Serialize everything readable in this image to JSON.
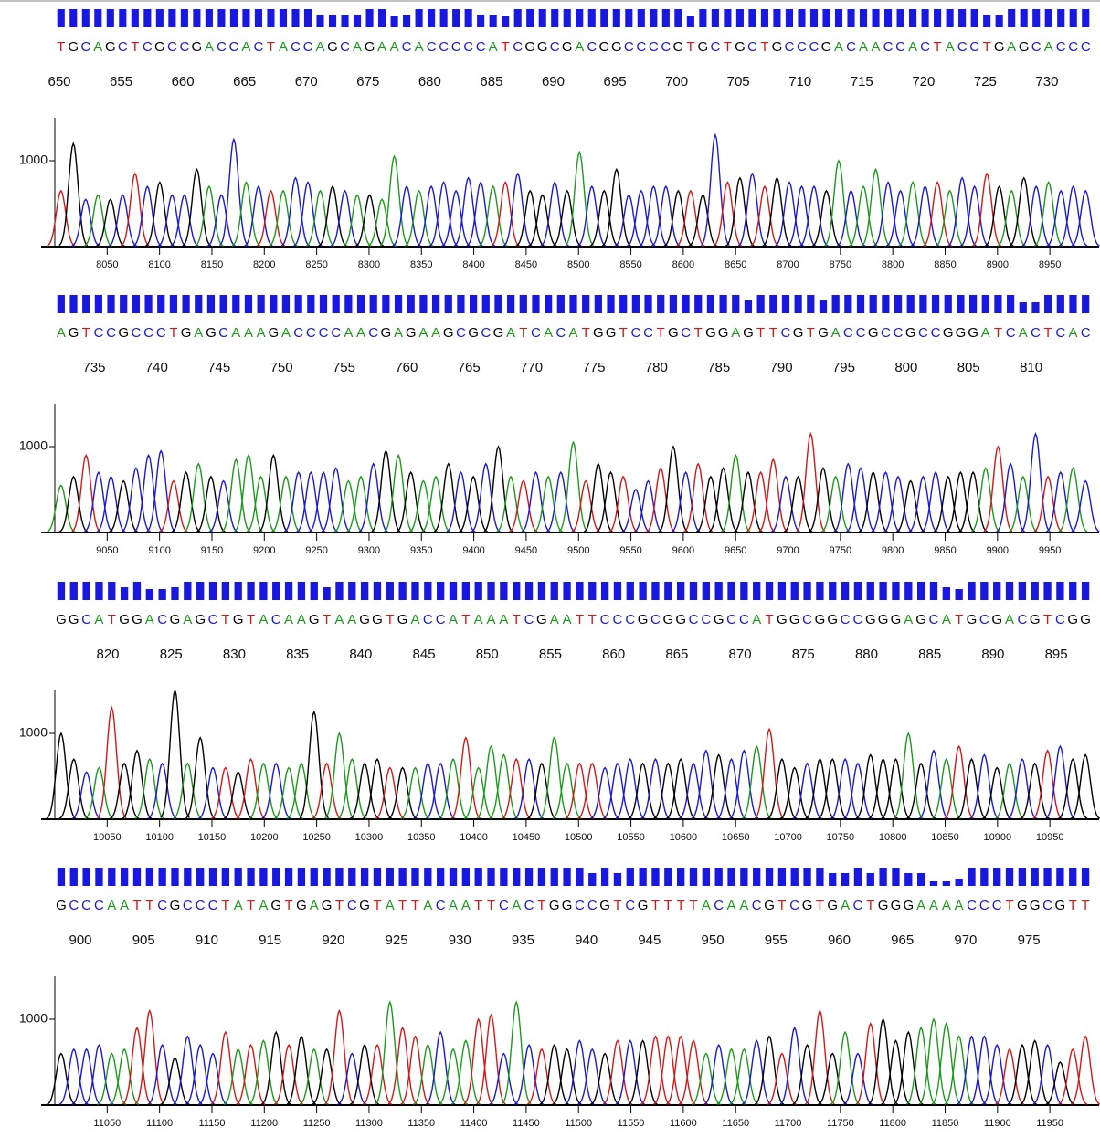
{
  "chart_data": [
    {
      "type": "chromatogram",
      "sequence": "TGCAGCTCGCCGACCACTACCAGCAGAACACCCCCATCGGCGACGGCCCCGTGCTGCTGCCCGACAACCACTACCTGAGCACCC",
      "positions": [
        650,
        655,
        660,
        665,
        670,
        675,
        680,
        685,
        690,
        695,
        700,
        705,
        710,
        715,
        720,
        725,
        730
      ],
      "peaks": [
        650,
        1200,
        550,
        600,
        550,
        600,
        850,
        700,
        750,
        600,
        600,
        900,
        700,
        600,
        1250,
        750,
        700,
        650,
        650,
        800,
        750,
        650,
        700,
        650,
        600,
        600,
        550,
        1050,
        700,
        650,
        700,
        750,
        650,
        800,
        750,
        700,
        750,
        850,
        650,
        600,
        750,
        650,
        1100,
        700,
        650,
        900,
        600,
        650,
        700,
        700,
        650,
        650,
        600,
        1300,
        750,
        800,
        850,
        700,
        800,
        750,
        700,
        700,
        650,
        1000,
        650,
        700,
        900,
        750,
        650,
        750,
        700,
        750,
        650,
        800,
        700,
        850,
        700,
        650,
        800,
        700,
        750,
        650,
        700,
        650
      ],
      "quality": [
        20,
        20,
        20,
        20,
        20,
        20,
        20,
        20,
        20,
        20,
        20,
        20,
        20,
        20,
        20,
        20,
        20,
        20,
        20,
        20,
        20,
        14,
        14,
        14,
        14,
        20,
        20,
        12,
        14,
        20,
        20,
        20,
        20,
        20,
        14,
        14,
        12,
        20,
        20,
        20,
        20,
        20,
        20,
        20,
        20,
        20,
        20,
        20,
        20,
        20,
        20,
        12,
        20,
        20,
        20,
        20,
        20,
        20,
        20,
        20,
        20,
        20,
        20,
        20,
        20,
        20,
        20,
        20,
        20,
        20,
        20,
        20,
        20,
        20,
        20,
        14,
        14,
        20,
        20,
        20,
        20,
        20,
        20,
        20
      ],
      "xlim": [
        8000,
        8990
      ],
      "xticks": [
        8050,
        8100,
        8150,
        8200,
        8250,
        8300,
        8350,
        8400,
        8450,
        8500,
        8550,
        8600,
        8650,
        8700,
        8750,
        8800,
        8850,
        8900,
        8950
      ],
      "ylim": [
        0,
        1500
      ],
      "yticks": [
        1000
      ],
      "base_colors": {
        "A": "#1c9a1c",
        "C": "#1a1ad0",
        "G": "#000000",
        "T": "#d41818"
      },
      "quality_color": "#1818e0"
    },
    {
      "type": "chromatogram",
      "sequence": "AGTCCGCCCTGAGCAAAGACCCCAACGAGAAGCGCGATCACATGGTCCTGCTGGAGTTCGTGACCGCCGCCGGGATCACTCAC",
      "positions": [
        735,
        740,
        745,
        750,
        755,
        760,
        765,
        770,
        775,
        780,
        785,
        790,
        795,
        800,
        805,
        810
      ],
      "peaks": [
        550,
        650,
        900,
        700,
        650,
        600,
        750,
        900,
        950,
        600,
        700,
        800,
        650,
        600,
        850,
        900,
        650,
        900,
        650,
        700,
        700,
        700,
        750,
        600,
        650,
        800,
        950,
        900,
        700,
        600,
        650,
        800,
        700,
        650,
        800,
        1000,
        650,
        600,
        700,
        650,
        700,
        1050,
        600,
        800,
        700,
        650,
        500,
        600,
        750,
        1000,
        700,
        800,
        650,
        750,
        900,
        700,
        700,
        850,
        650,
        650,
        1150,
        750,
        650,
        800,
        750,
        700,
        700,
        650,
        600,
        650,
        700,
        650,
        700,
        700,
        750,
        1000,
        800,
        650,
        1150,
        650,
        700,
        750,
        600
      ],
      "quality": [
        20,
        20,
        20,
        20,
        20,
        20,
        20,
        20,
        20,
        20,
        20,
        20,
        20,
        20,
        20,
        20,
        20,
        20,
        20,
        20,
        20,
        20,
        20,
        20,
        20,
        20,
        20,
        20,
        20,
        20,
        20,
        20,
        20,
        20,
        20,
        20,
        20,
        20,
        20,
        20,
        20,
        20,
        20,
        20,
        20,
        20,
        20,
        20,
        20,
        20,
        20,
        20,
        20,
        20,
        20,
        14,
        20,
        20,
        20,
        20,
        20,
        14,
        20,
        20,
        20,
        20,
        20,
        20,
        20,
        20,
        20,
        20,
        20,
        20,
        20,
        20,
        20,
        12,
        12,
        20,
        20,
        20,
        20
      ],
      "xlim": [
        9000,
        9990
      ],
      "xticks": [
        9050,
        9100,
        9150,
        9200,
        9250,
        9300,
        9350,
        9400,
        9450,
        9500,
        9550,
        9600,
        9650,
        9700,
        9750,
        9800,
        9850,
        9900,
        9950
      ],
      "ylim": [
        0,
        1500
      ],
      "yticks": [
        1000
      ],
      "base_colors": {
        "A": "#1c9a1c",
        "C": "#1a1ad0",
        "G": "#000000",
        "T": "#d41818"
      },
      "quality_color": "#1818e0"
    },
    {
      "type": "chromatogram",
      "sequence": "GGCATGGACGAGCTGTACAAGTAAGGTGACCATAAATCGAATTCCCGCGGCCGCCATGGCGGCCGGGAGCATGCGACGTCGG",
      "positions": [
        820,
        825,
        830,
        835,
        840,
        845,
        850,
        855,
        860,
        865,
        870,
        875,
        880,
        885,
        890,
        895
      ],
      "peaks": [
        1000,
        700,
        550,
        600,
        1300,
        650,
        800,
        700,
        650,
        1500,
        650,
        950,
        600,
        600,
        550,
        700,
        650,
        650,
        600,
        650,
        1250,
        650,
        1000,
        700,
        650,
        700,
        600,
        600,
        600,
        650,
        650,
        700,
        950,
        600,
        850,
        750,
        700,
        700,
        650,
        950,
        650,
        650,
        650,
        600,
        650,
        700,
        650,
        700,
        650,
        700,
        650,
        800,
        750,
        700,
        800,
        850,
        1050,
        700,
        600,
        650,
        700,
        700,
        700,
        650,
        750,
        700,
        700,
        1000,
        650,
        800,
        700,
        850,
        700,
        750,
        600,
        650,
        700,
        650,
        800,
        850,
        700,
        750
      ],
      "quality": [
        20,
        20,
        20,
        20,
        20,
        14,
        20,
        12,
        12,
        14,
        20,
        20,
        20,
        20,
        20,
        20,
        20,
        20,
        20,
        20,
        20,
        14,
        20,
        20,
        20,
        20,
        20,
        20,
        20,
        20,
        20,
        20,
        20,
        20,
        20,
        20,
        20,
        20,
        20,
        20,
        20,
        20,
        20,
        20,
        20,
        20,
        20,
        20,
        20,
        20,
        20,
        20,
        20,
        20,
        20,
        20,
        20,
        20,
        20,
        20,
        20,
        20,
        20,
        20,
        20,
        20,
        20,
        20,
        20,
        20,
        14,
        12,
        20,
        20,
        20,
        20,
        20,
        20,
        20,
        20,
        20,
        20
      ],
      "xlim": [
        10000,
        10990
      ],
      "xticks": [
        10050,
        10100,
        10150,
        10200,
        10250,
        10300,
        10350,
        10400,
        10450,
        10500,
        10550,
        10600,
        10650,
        10700,
        10750,
        10800,
        10850,
        10900,
        10950
      ],
      "ylim": [
        0,
        1500
      ],
      "yticks": [
        1000
      ],
      "base_colors": {
        "A": "#1c9a1c",
        "C": "#1a1ad0",
        "G": "#000000",
        "T": "#d41818"
      },
      "quality_color": "#1818e0"
    },
    {
      "type": "chromatogram",
      "sequence": "GCCCAATTCGCCCTATAGTGAGTCGTATTACAATTCACTGGCCGTCGTTTTACAACGTCGTGACTGGGAAAACCCTGGCGTT",
      "positions": [
        900,
        905,
        910,
        915,
        920,
        925,
        930,
        935,
        940,
        945,
        950,
        955,
        960,
        965,
        970,
        975
      ],
      "peaks": [
        600,
        650,
        650,
        700,
        600,
        650,
        900,
        1100,
        700,
        550,
        800,
        700,
        600,
        850,
        650,
        700,
        750,
        850,
        700,
        800,
        650,
        650,
        1100,
        600,
        700,
        700,
        1200,
        900,
        800,
        700,
        850,
        650,
        750,
        1000,
        1050,
        600,
        1200,
        700,
        650,
        700,
        650,
        750,
        650,
        600,
        750,
        750,
        750,
        800,
        800,
        800,
        750,
        600,
        700,
        650,
        650,
        750,
        800,
        600,
        900,
        700,
        1100,
        600,
        850,
        600,
        950,
        1000,
        750,
        850,
        900,
        1000,
        950,
        800,
        800,
        800,
        700,
        650,
        700,
        750,
        700,
        500,
        650,
        800
      ],
      "quality": [
        20,
        20,
        20,
        20,
        20,
        20,
        20,
        20,
        20,
        20,
        20,
        20,
        20,
        20,
        20,
        20,
        20,
        20,
        20,
        20,
        20,
        20,
        20,
        20,
        20,
        20,
        20,
        20,
        20,
        20,
        20,
        20,
        20,
        20,
        20,
        20,
        20,
        20,
        20,
        20,
        20,
        20,
        14,
        20,
        14,
        20,
        20,
        20,
        20,
        20,
        20,
        20,
        20,
        20,
        20,
        20,
        20,
        20,
        20,
        20,
        20,
        14,
        14,
        20,
        14,
        20,
        20,
        14,
        14,
        5,
        5,
        8,
        20,
        20,
        20,
        20,
        20,
        20,
        20,
        20,
        20,
        20
      ],
      "xlim": [
        11000,
        11990
      ],
      "xticks": [
        11050,
        11100,
        11150,
        11200,
        11250,
        11300,
        11350,
        11400,
        11450,
        11500,
        11550,
        11600,
        11650,
        11700,
        11750,
        11800,
        11850,
        11900,
        11950
      ],
      "ylim": [
        0,
        1500
      ],
      "yticks": [
        1000
      ],
      "base_colors": {
        "A": "#1c9a1c",
        "C": "#1a1ad0",
        "G": "#000000",
        "T": "#d41818"
      },
      "quality_color": "#1818e0"
    }
  ]
}
